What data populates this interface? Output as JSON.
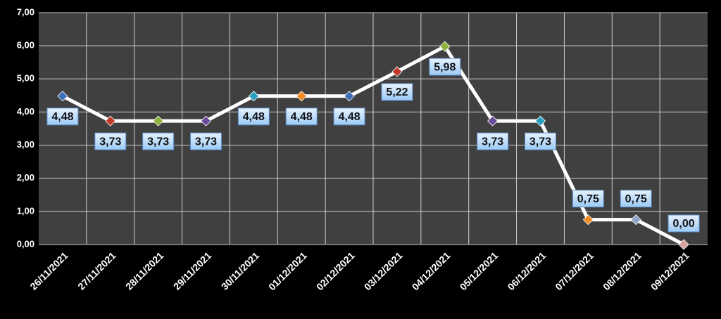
{
  "chart_data": {
    "type": "line",
    "categories": [
      "26/11/2021",
      "27/11/2021",
      "28/11/2021",
      "29/11/2021",
      "30/11/2021",
      "01/12/2021",
      "02/12/2021",
      "03/12/2021",
      "04/12/2021",
      "05/12/2021",
      "06/12/2021",
      "07/12/2021",
      "08/12/2021",
      "09/12/2021"
    ],
    "values": [
      4.48,
      3.73,
      3.73,
      3.73,
      4.48,
      4.48,
      4.48,
      5.22,
      5.98,
      3.73,
      3.73,
      0.75,
      0.75,
      0
    ],
    "value_labels": [
      "4,48",
      "3,73",
      "3,73",
      "3,73",
      "4,48",
      "4,48",
      "4,48",
      "5,22",
      "5,98",
      "3,73",
      "3,73",
      "0,75",
      "0,75",
      "0,00"
    ],
    "color": "#ffffff",
    "marker_colors": [
      "#3c6fb4",
      "#c0392b",
      "#8db33a",
      "#6b4c9a",
      "#2aa0c0",
      "#f08a24",
      "#3c6fb4",
      "#c0392b",
      "#8db33a",
      "#6b4c9a",
      "#2aa0c0",
      "#f08a24",
      "#8ea4c8",
      "#d9a0a0"
    ],
    "ylim": [
      0,
      7
    ],
    "yticks": [
      {
        "value": 0,
        "label": "0,00"
      },
      {
        "value": 1,
        "label": "1,00"
      },
      {
        "value": 2,
        "label": "2,00"
      },
      {
        "value": 3,
        "label": "3,00"
      },
      {
        "value": 4,
        "label": "4,00"
      },
      {
        "value": 5,
        "label": "5,00"
      },
      {
        "value": 6,
        "label": "6,00"
      },
      {
        "value": 7,
        "label": "7,00"
      }
    ],
    "grid": true
  }
}
